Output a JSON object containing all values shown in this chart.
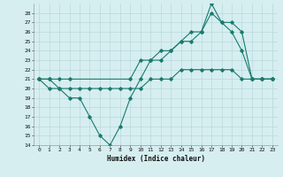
{
  "title": "",
  "xlabel": "Humidex (Indice chaleur)",
  "ylabel": "",
  "background_color": "#d6eef0",
  "grid_color": "#b8d8dc",
  "line_color": "#1a7a6e",
  "xlim": [
    -0.5,
    23.5
  ],
  "ylim": [
    14,
    29
  ],
  "yticks": [
    14,
    15,
    16,
    17,
    18,
    19,
    20,
    21,
    22,
    23,
    24,
    25,
    26,
    27,
    28
  ],
  "xticks": [
    0,
    1,
    2,
    3,
    4,
    5,
    6,
    7,
    8,
    9,
    10,
    11,
    12,
    13,
    14,
    15,
    16,
    17,
    18,
    19,
    20,
    21,
    22,
    23
  ],
  "series": [
    {
      "x": [
        0,
        1,
        2,
        3,
        4,
        5,
        6,
        7,
        8,
        9,
        10,
        11,
        12,
        13,
        14,
        15,
        16,
        17,
        18,
        19,
        20,
        21,
        22,
        23
      ],
      "y": [
        21,
        21,
        20,
        19,
        19,
        17,
        15,
        14,
        16,
        19,
        21,
        23,
        23,
        24,
        25,
        26,
        26,
        28,
        27,
        26,
        24,
        21,
        21,
        21
      ]
    },
    {
      "x": [
        0,
        1,
        2,
        3,
        4,
        5,
        6,
        7,
        8,
        9,
        10,
        11,
        12,
        13,
        14,
        15,
        16,
        17,
        18,
        19,
        20,
        21,
        22,
        23
      ],
      "y": [
        21,
        20,
        20,
        20,
        20,
        20,
        20,
        20,
        20,
        20,
        20,
        21,
        21,
        21,
        22,
        22,
        22,
        22,
        22,
        22,
        21,
        21,
        21,
        21
      ]
    },
    {
      "x": [
        0,
        1,
        2,
        3,
        9,
        10,
        11,
        12,
        13,
        14,
        15,
        16,
        17,
        18,
        19,
        20,
        21,
        22,
        23
      ],
      "y": [
        21,
        21,
        21,
        21,
        21,
        23,
        23,
        24,
        24,
        25,
        25,
        26,
        29,
        27,
        27,
        26,
        21,
        21,
        21
      ]
    }
  ]
}
